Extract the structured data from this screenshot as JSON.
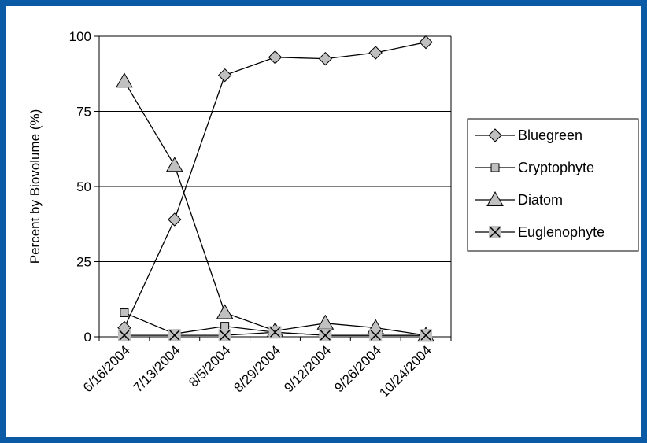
{
  "chart_data": {
    "type": "line",
    "ylabel": "Percent by Biovolume (%)",
    "xlabel": "",
    "title": "",
    "categories": [
      "6/16/2004",
      "7/13/2004",
      "8/5/2004",
      "8/29/2004",
      "9/12/2004",
      "9/26/2004",
      "10/24/2004"
    ],
    "yticks": [
      "0",
      "25",
      "50",
      "75",
      "100"
    ],
    "ylim": [
      0,
      100
    ],
    "grid": "horizontal",
    "legend_position": "right",
    "series": [
      {
        "name": "Bluegreen",
        "marker": "diamond",
        "color": "#c0c0c0",
        "values": [
          3,
          39,
          87,
          93,
          92.5,
          94.5,
          98
        ]
      },
      {
        "name": "Cryptophyte",
        "marker": "square",
        "color": "#c0c0c0",
        "values": [
          8,
          1,
          3.5,
          1.5,
          0.5,
          0.5,
          0.5
        ]
      },
      {
        "name": "Diatom",
        "marker": "triangle",
        "color": "#c0c0c0",
        "values": [
          85,
          57,
          8,
          2,
          4.5,
          3,
          0.5
        ]
      },
      {
        "name": "Euglenophyte",
        "marker": "x",
        "color": "#c0c0c0",
        "values": [
          0.5,
          0.5,
          0.5,
          1.5,
          0.5,
          0.5,
          0.5
        ]
      }
    ]
  }
}
